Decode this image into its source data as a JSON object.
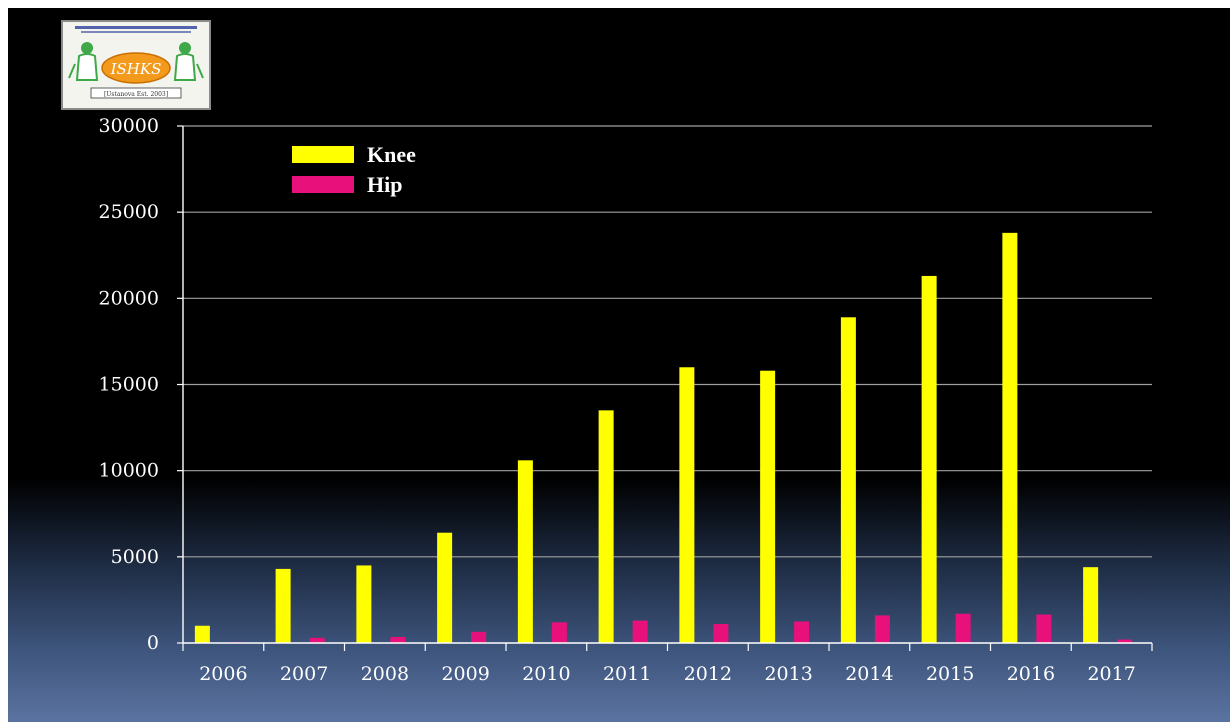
{
  "logo": {
    "name": "ISHKS",
    "subtext": "[Ustanova Est. 2003]"
  },
  "colors": {
    "background": "#000000",
    "gridline": "#a0a0a0",
    "axis": "#ffffff",
    "text": "#ffffff"
  },
  "chart_data": {
    "type": "bar",
    "title": "",
    "xlabel": "",
    "ylabel": "",
    "categories": [
      "2006",
      "2007",
      "2008",
      "2009",
      "2010",
      "2011",
      "2012",
      "2013",
      "2014",
      "2015",
      "2016",
      "2017"
    ],
    "series": [
      {
        "name": "Knee",
        "color": "#ffff00",
        "values": [
          1000,
          4300,
          4500,
          6400,
          10600,
          13500,
          16000,
          15800,
          18900,
          21300,
          23800,
          4400
        ]
      },
      {
        "name": "Hip",
        "color": "#e8107a",
        "values": [
          50,
          300,
          350,
          650,
          1200,
          1300,
          1100,
          1250,
          1600,
          1700,
          1650,
          200
        ]
      }
    ],
    "ylim": [
      0,
      30000
    ],
    "yticks": [
      "0",
      "5000",
      "10000",
      "15000",
      "20000",
      "25000",
      "30000"
    ],
    "grid": true,
    "legend_position": "top-left"
  }
}
